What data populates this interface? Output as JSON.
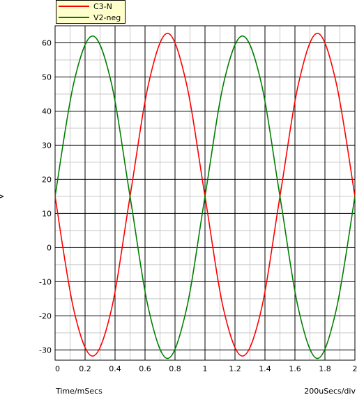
{
  "chart_data": {
    "type": "line",
    "title": "",
    "xlabel": "Time/mSecs",
    "ylabel": "V",
    "x_scale_label": "200uSecs/div",
    "xlim": [
      0,
      2
    ],
    "ylim": [
      -33,
      65
    ],
    "x_ticks": [
      "0",
      "0.2",
      "0.4",
      "0.6",
      "0.8",
      "1",
      "1.2",
      "1.4",
      "1.6",
      "1.8",
      "2"
    ],
    "y_ticks": [
      "60",
      "50",
      "40",
      "30",
      "20",
      "10",
      "0",
      "-10",
      "-20",
      "-30"
    ],
    "grid": true,
    "background": "#ffffff",
    "legend_position": "top-left",
    "series": [
      {
        "name": "C3-N",
        "color": "#ff0000",
        "x": [
          0,
          0.125,
          0.25,
          0.375,
          0.5,
          0.625,
          0.75,
          0.875,
          1.0,
          1.125,
          1.25,
          1.375,
          1.5,
          1.625,
          1.75,
          1.875,
          2.0
        ],
        "values": [
          15,
          -18.3,
          -31.8,
          -18.3,
          15,
          48.3,
          62.8,
          48.3,
          15,
          -18.3,
          -31.8,
          -18.3,
          15,
          48.3,
          62.8,
          48.3,
          15
        ]
      },
      {
        "name": "V2-neg",
        "color": "#008000",
        "x": [
          0,
          0.125,
          0.25,
          0.375,
          0.5,
          0.625,
          0.75,
          0.875,
          1.0,
          1.125,
          1.25,
          1.375,
          1.5,
          1.625,
          1.75,
          1.875,
          2.0
        ],
        "values": [
          15,
          48.3,
          62,
          48.3,
          15,
          -18.3,
          -32.5,
          -18.3,
          15,
          48.3,
          62,
          48.3,
          15,
          -18.3,
          -32.5,
          -18.3,
          15
        ]
      }
    ]
  }
}
